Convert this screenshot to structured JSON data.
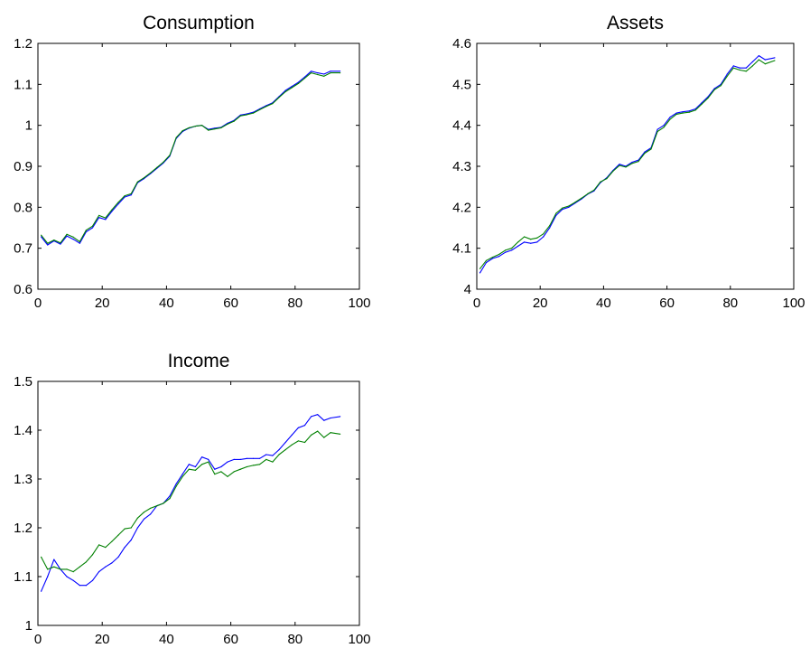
{
  "chart_data": [
    {
      "type": "line",
      "title": "Consumption",
      "xlabel": "",
      "ylabel": "",
      "xlim": [
        0,
        100
      ],
      "ylim": [
        0.6,
        1.2
      ],
      "xticks": [
        "0",
        "20",
        "40",
        "60",
        "80",
        "100"
      ],
      "yticks": [
        "0.6",
        "0.7",
        "0.8",
        "0.9",
        "1",
        "1.1",
        "1.2"
      ],
      "grid": false,
      "series": [
        {
          "color": "#0000ff",
          "x": [
            1,
            3,
            5,
            7,
            9,
            11,
            13,
            15,
            17,
            19,
            21,
            23,
            25,
            27,
            29,
            31,
            33,
            35,
            37,
            39,
            41,
            43,
            45,
            47,
            49,
            51,
            53,
            55,
            57,
            59,
            61,
            63,
            65,
            67,
            69,
            71,
            73,
            75,
            77,
            79,
            81,
            83,
            85,
            87,
            89,
            91,
            94
          ],
          "y": [
            0.728,
            0.708,
            0.718,
            0.71,
            0.73,
            0.722,
            0.712,
            0.74,
            0.75,
            0.775,
            0.77,
            0.79,
            0.808,
            0.825,
            0.83,
            0.86,
            0.87,
            0.882,
            0.895,
            0.908,
            0.925,
            0.968,
            0.985,
            0.993,
            0.998,
            1.0,
            0.99,
            0.993,
            0.995,
            1.005,
            1.012,
            1.025,
            1.028,
            1.032,
            1.04,
            1.048,
            1.055,
            1.07,
            1.085,
            1.095,
            1.105,
            1.118,
            1.132,
            1.128,
            1.125,
            1.132,
            1.132
          ]
        },
        {
          "color": "#008000",
          "x": [
            1,
            3,
            5,
            7,
            9,
            11,
            13,
            15,
            17,
            19,
            21,
            23,
            25,
            27,
            29,
            31,
            33,
            35,
            37,
            39,
            41,
            43,
            45,
            47,
            49,
            51,
            53,
            55,
            57,
            59,
            61,
            63,
            65,
            67,
            69,
            71,
            73,
            75,
            77,
            79,
            81,
            83,
            85,
            87,
            89,
            91,
            94
          ],
          "y": [
            0.732,
            0.712,
            0.72,
            0.713,
            0.734,
            0.727,
            0.716,
            0.744,
            0.754,
            0.78,
            0.774,
            0.794,
            0.812,
            0.828,
            0.833,
            0.862,
            0.872,
            0.884,
            0.897,
            0.91,
            0.927,
            0.97,
            0.987,
            0.994,
            0.998,
            1.0,
            0.988,
            0.991,
            0.994,
            1.003,
            1.01,
            1.023,
            1.026,
            1.03,
            1.038,
            1.046,
            1.053,
            1.068,
            1.082,
            1.092,
            1.102,
            1.115,
            1.128,
            1.124,
            1.12,
            1.128,
            1.128
          ]
        }
      ]
    },
    {
      "type": "line",
      "title": "Assets",
      "xlabel": "",
      "ylabel": "",
      "xlim": [
        0,
        100
      ],
      "ylim": [
        4.0,
        4.6
      ],
      "xticks": [
        "0",
        "20",
        "40",
        "60",
        "80",
        "100"
      ],
      "yticks": [
        "4",
        "4.1",
        "4.2",
        "4.3",
        "4.4",
        "4.5",
        "4.6"
      ],
      "grid": false,
      "series": [
        {
          "color": "#0000ff",
          "x": [
            1,
            3,
            5,
            7,
            9,
            11,
            13,
            15,
            17,
            19,
            21,
            23,
            25,
            27,
            29,
            31,
            33,
            35,
            37,
            39,
            41,
            43,
            45,
            47,
            49,
            51,
            53,
            55,
            57,
            59,
            61,
            63,
            65,
            67,
            69,
            71,
            73,
            75,
            77,
            79,
            81,
            83,
            85,
            87,
            89,
            91,
            94
          ],
          "y": [
            4.04,
            4.065,
            4.075,
            4.08,
            4.09,
            4.095,
            4.105,
            4.115,
            4.112,
            4.115,
            4.128,
            4.15,
            4.18,
            4.195,
            4.2,
            4.21,
            4.22,
            4.232,
            4.24,
            4.26,
            4.272,
            4.29,
            4.305,
            4.3,
            4.31,
            4.315,
            4.335,
            4.345,
            4.39,
            4.4,
            4.42,
            4.43,
            4.433,
            4.435,
            4.44,
            4.455,
            4.47,
            4.49,
            4.5,
            4.525,
            4.545,
            4.54,
            4.54,
            4.555,
            4.57,
            4.56,
            4.565
          ]
        },
        {
          "color": "#008000",
          "x": [
            1,
            3,
            5,
            7,
            9,
            11,
            13,
            15,
            17,
            19,
            21,
            23,
            25,
            27,
            29,
            31,
            33,
            35,
            37,
            39,
            41,
            43,
            45,
            47,
            49,
            51,
            53,
            55,
            57,
            59,
            61,
            63,
            65,
            67,
            69,
            71,
            73,
            75,
            77,
            79,
            81,
            83,
            85,
            87,
            89,
            91,
            94
          ],
          "y": [
            4.05,
            4.07,
            4.078,
            4.085,
            4.095,
            4.1,
            4.115,
            4.128,
            4.122,
            4.125,
            4.135,
            4.155,
            4.185,
            4.198,
            4.203,
            4.212,
            4.222,
            4.233,
            4.242,
            4.262,
            4.27,
            4.288,
            4.302,
            4.298,
            4.307,
            4.312,
            4.332,
            4.342,
            4.385,
            4.395,
            4.415,
            4.427,
            4.43,
            4.432,
            4.437,
            4.452,
            4.467,
            4.487,
            4.497,
            4.52,
            4.54,
            4.535,
            4.532,
            4.545,
            4.56,
            4.55,
            4.558
          ]
        }
      ]
    },
    {
      "type": "line",
      "title": "Income",
      "xlabel": "",
      "ylabel": "",
      "xlim": [
        0,
        100
      ],
      "ylim": [
        1.0,
        1.5
      ],
      "xticks": [
        "0",
        "20",
        "40",
        "60",
        "80",
        "100"
      ],
      "yticks": [
        "1",
        "1.1",
        "1.2",
        "1.3",
        "1.4",
        "1.5"
      ],
      "grid": false,
      "series": [
        {
          "color": "#0000ff",
          "x": [
            1,
            3,
            5,
            7,
            9,
            11,
            13,
            15,
            17,
            19,
            21,
            23,
            25,
            27,
            29,
            31,
            33,
            35,
            37,
            39,
            41,
            43,
            45,
            47,
            49,
            51,
            53,
            55,
            57,
            59,
            61,
            63,
            65,
            67,
            69,
            71,
            73,
            75,
            77,
            79,
            81,
            83,
            85,
            87,
            89,
            91,
            94
          ],
          "y": [
            1.07,
            1.1,
            1.135,
            1.115,
            1.1,
            1.092,
            1.082,
            1.082,
            1.092,
            1.11,
            1.12,
            1.128,
            1.14,
            1.16,
            1.175,
            1.2,
            1.218,
            1.228,
            1.245,
            1.25,
            1.265,
            1.29,
            1.31,
            1.33,
            1.325,
            1.345,
            1.34,
            1.32,
            1.325,
            1.335,
            1.34,
            1.34,
            1.342,
            1.342,
            1.342,
            1.35,
            1.348,
            1.36,
            1.375,
            1.39,
            1.405,
            1.41,
            1.428,
            1.432,
            1.42,
            1.425,
            1.428
          ]
        },
        {
          "color": "#008000",
          "x": [
            1,
            3,
            5,
            7,
            9,
            11,
            13,
            15,
            17,
            19,
            21,
            23,
            25,
            27,
            29,
            31,
            33,
            35,
            37,
            39,
            41,
            43,
            45,
            47,
            49,
            51,
            53,
            55,
            57,
            59,
            61,
            63,
            65,
            67,
            69,
            71,
            73,
            75,
            77,
            79,
            81,
            83,
            85,
            87,
            89,
            91,
            94
          ],
          "y": [
            1.14,
            1.115,
            1.12,
            1.115,
            1.115,
            1.11,
            1.12,
            1.13,
            1.145,
            1.165,
            1.16,
            1.172,
            1.185,
            1.198,
            1.2,
            1.22,
            1.232,
            1.24,
            1.245,
            1.25,
            1.26,
            1.285,
            1.305,
            1.32,
            1.318,
            1.33,
            1.335,
            1.31,
            1.315,
            1.305,
            1.315,
            1.32,
            1.325,
            1.328,
            1.33,
            1.34,
            1.335,
            1.35,
            1.36,
            1.37,
            1.378,
            1.375,
            1.39,
            1.398,
            1.385,
            1.395,
            1.392
          ]
        }
      ]
    }
  ]
}
